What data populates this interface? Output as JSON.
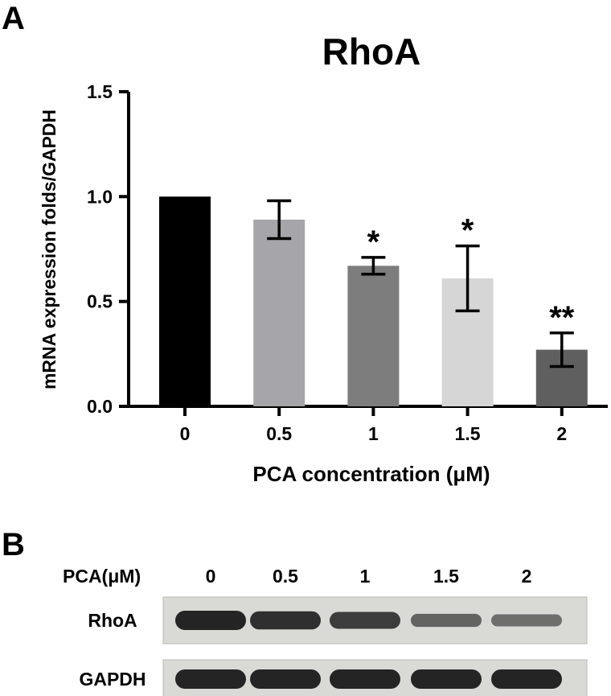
{
  "panel_a": {
    "label": "A",
    "chart_data": {
      "type": "bar",
      "title": "RhoA",
      "xlabel": "PCA concentration (μM)",
      "ylabel": "mRNA expression folds/GAPDH",
      "categories": [
        "0",
        "0.5",
        "1",
        "1.5",
        "2"
      ],
      "values": [
        1.0,
        0.89,
        0.67,
        0.61,
        0.27
      ],
      "errors": [
        0,
        0.09,
        0.04,
        0.155,
        0.08
      ],
      "significance": [
        "",
        "",
        "*",
        "*",
        "**"
      ],
      "bar_colors": [
        "#000000",
        "#a6a6aa",
        "#7d7d7d",
        "#d6d6d6",
        "#5f5f5f"
      ],
      "ylim": [
        0,
        1.5
      ],
      "yticks": [
        "0.0",
        "0.5",
        "1.0",
        "1.5"
      ],
      "ytick_values": [
        0,
        0.5,
        1.0,
        1.5
      ],
      "grid": false,
      "legend": "none"
    }
  },
  "panel_b": {
    "label": "B",
    "header_label": "PCA(μM)",
    "lanes": [
      "0",
      "0.5",
      "1",
      "1.5",
      "2"
    ],
    "rows": [
      {
        "label": "RhoA",
        "intensities": [
          1.0,
          0.9,
          0.78,
          0.45,
          0.35
        ]
      },
      {
        "label": "GAPDH",
        "intensities": [
          1.0,
          1.0,
          1.0,
          1.0,
          1.0
        ]
      }
    ],
    "membrane_color": "#d9d9d6",
    "band_color": "#1a1a1a"
  }
}
